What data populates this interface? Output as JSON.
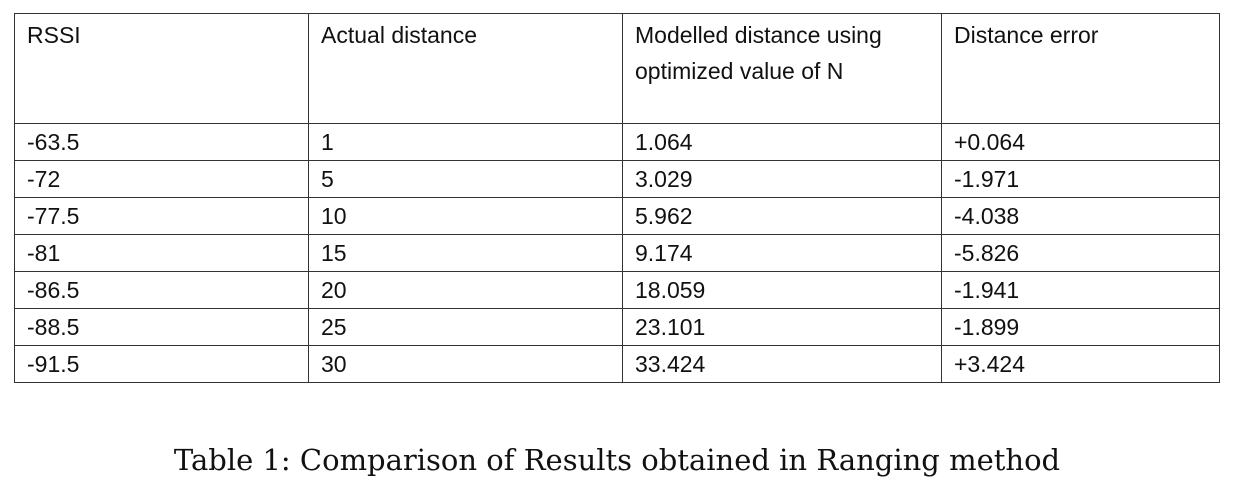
{
  "table": {
    "headers": [
      "RSSI",
      "Actual distance",
      "Modelled distance using optimized value of N",
      "Distance error"
    ],
    "rows": [
      [
        "-63.5",
        "1",
        "1.064",
        "+0.064"
      ],
      [
        "-72",
        "5",
        "3.029",
        "-1.971"
      ],
      [
        "-77.5",
        "10",
        "5.962",
        "-4.038"
      ],
      [
        "-81",
        "15",
        "9.174",
        "-5.826"
      ],
      [
        "-86.5",
        "20",
        "18.059",
        "-1.941"
      ],
      [
        "-88.5",
        "25",
        "23.101",
        "-1.899"
      ],
      [
        "-91.5",
        "30",
        "33.424",
        "+3.424"
      ]
    ]
  },
  "caption": "Table 1: Comparison of Results obtained in Ranging method"
}
